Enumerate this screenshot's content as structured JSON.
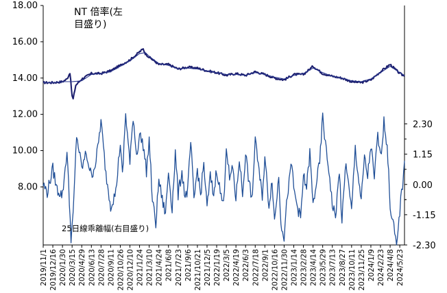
{
  "chart_data": {
    "type": "line",
    "title": "",
    "annotations": {
      "nt_ratio_line1": "NT 倍率(左",
      "nt_ratio_line2": "目盛り)",
      "deviation_label": "25日線乖離幅(右目盛り)"
    },
    "left_axis": {
      "ticks": [
        "18.00",
        "16.00",
        "14.00",
        "12.00",
        "10.00",
        "8.00"
      ],
      "tick_values": [
        18,
        16,
        14,
        12,
        10,
        8
      ],
      "range": [
        4.8,
        18
      ]
    },
    "right_axis": {
      "ticks": [
        "2.30",
        "1.15",
        "0.00",
        "-1.15",
        "-2.30"
      ],
      "tick_values": [
        2.3,
        1.15,
        0,
        -1.15,
        -2.3
      ],
      "range": [
        -2.3,
        6.8
      ]
    },
    "x_axis": {
      "start": "2019-11-01",
      "end": "2024-06-14",
      "tick_labels": [
        "2019/11/1",
        "2019/12/16",
        "2020/1/30",
        "2020/3/15",
        "2020/4/29",
        "2020/6/13",
        "2020/7/28",
        "2020/9/11",
        "2020/10/26",
        "2020/12/10",
        "2021/1/24",
        "2021/3/10",
        "2021/4/24",
        "2021/6/8",
        "2021/7/23",
        "2021/9/6",
        "2021/10/21",
        "2021/12/5",
        "2022/1/19",
        "2022/3/5",
        "2022/4/19",
        "2022/6/3",
        "2022/7/18",
        "2022/9/1",
        "2022/10/16",
        "2022/11/30",
        "2023/1/14",
        "2023/2/28",
        "2023/4/14",
        "2023/5/29",
        "2023/7/13",
        "2023/8/27",
        "2023/10/11",
        "2023/11/25",
        "2024/1/9",
        "2024/2/23",
        "2024/4/8",
        "2024/5/23"
      ]
    },
    "series": [
      {
        "axis": "left",
        "color": "#1c1f6e",
        "style": "daily",
        "dates": [
          "2019-11-01",
          "2019-12-16",
          "2020-01-30",
          "2020-02-20",
          "2020-03-05",
          "2020-03-15",
          "2020-03-20",
          "2020-04-01",
          "2020-04-29",
          "2020-06-13",
          "2020-07-28",
          "2020-09-11",
          "2020-10-26",
          "2020-12-10",
          "2021-01-10",
          "2021-01-24",
          "2021-02-10",
          "2021-02-20",
          "2021-03-10",
          "2021-04-24",
          "2021-06-08",
          "2021-07-23",
          "2021-09-06",
          "2021-10-21",
          "2021-12-05",
          "2022-01-19",
          "2022-03-05",
          "2022-04-19",
          "2022-06-03",
          "2022-07-18",
          "2022-09-01",
          "2022-10-16",
          "2022-11-30",
          "2023-01-14",
          "2023-02-28",
          "2023-04-14",
          "2023-05-29",
          "2023-07-13",
          "2023-08-27",
          "2023-10-11",
          "2023-11-25",
          "2024-01-09",
          "2024-02-23",
          "2024-04-08",
          "2024-05-23",
          "2024-06-14"
        ],
        "values": [
          13.75,
          13.75,
          13.8,
          13.95,
          14.3,
          13.0,
          12.85,
          13.6,
          13.95,
          14.25,
          14.25,
          14.4,
          14.7,
          15.0,
          15.3,
          15.45,
          15.6,
          15.35,
          15.15,
          14.75,
          14.75,
          14.5,
          14.6,
          14.55,
          14.4,
          14.3,
          14.15,
          14.25,
          14.15,
          14.35,
          14.2,
          14.0,
          13.9,
          14.2,
          14.2,
          14.65,
          14.25,
          14.1,
          14.0,
          13.8,
          13.75,
          13.9,
          14.35,
          14.75,
          14.25,
          14.1
        ]
      },
      {
        "axis": "left",
        "color": "#27348b",
        "style": "smooth",
        "dates": [
          "2019-11-01",
          "2019-12-16",
          "2020-01-30",
          "2020-03-15",
          "2020-04-29",
          "2020-06-13",
          "2020-07-28",
          "2020-09-11",
          "2020-10-26",
          "2020-12-10",
          "2021-01-24",
          "2021-02-20",
          "2021-03-10",
          "2021-04-24",
          "2021-06-08",
          "2021-07-23",
          "2021-09-06",
          "2021-10-21",
          "2021-12-05",
          "2022-01-19",
          "2022-03-05",
          "2022-04-19",
          "2022-06-03",
          "2022-07-18",
          "2022-09-01",
          "2022-10-16",
          "2022-11-30",
          "2023-01-14",
          "2023-02-28",
          "2023-04-14",
          "2023-05-29",
          "2023-07-13",
          "2023-08-27",
          "2023-10-11",
          "2023-11-25",
          "2024-01-09",
          "2024-02-23",
          "2024-04-08",
          "2024-05-23",
          "2024-06-14"
        ],
        "values": [
          13.75,
          13.75,
          13.8,
          13.8,
          13.85,
          14.2,
          14.25,
          14.35,
          14.65,
          14.95,
          15.35,
          15.4,
          15.2,
          14.8,
          14.7,
          14.5,
          14.55,
          14.5,
          14.4,
          14.3,
          14.2,
          14.2,
          14.15,
          14.3,
          14.2,
          14.05,
          13.95,
          14.15,
          14.25,
          14.55,
          14.3,
          14.1,
          14.0,
          13.85,
          13.8,
          13.95,
          14.3,
          14.65,
          14.3,
          14.15
        ]
      },
      {
        "axis": "right",
        "color": "#1f4e96",
        "dates": [
          "2019-11-01",
          "2019-11-20",
          "2019-12-16",
          "2020-01-05",
          "2020-01-30",
          "2020-02-20",
          "2020-03-10",
          "2020-03-20",
          "2020-04-05",
          "2020-04-29",
          "2020-05-20",
          "2020-06-13",
          "2020-07-05",
          "2020-07-28",
          "2020-08-20",
          "2020-09-11",
          "2020-10-05",
          "2020-10-26",
          "2020-11-05",
          "2020-11-20",
          "2020-12-10",
          "2020-12-25",
          "2021-01-10",
          "2021-01-24",
          "2021-02-10",
          "2021-02-25",
          "2021-03-10",
          "2021-03-25",
          "2021-04-10",
          "2021-04-24",
          "2021-05-10",
          "2021-05-25",
          "2021-06-08",
          "2021-06-25",
          "2021-07-10",
          "2021-07-23",
          "2021-08-10",
          "2021-08-25",
          "2021-09-06",
          "2021-09-20",
          "2021-10-05",
          "2021-10-21",
          "2021-11-05",
          "2021-11-20",
          "2021-12-05",
          "2021-12-20",
          "2022-01-05",
          "2022-01-19",
          "2022-02-05",
          "2022-02-20",
          "2022-03-05",
          "2022-03-20",
          "2022-04-05",
          "2022-04-19",
          "2022-05-05",
          "2022-05-20",
          "2022-06-03",
          "2022-06-20",
          "2022-07-05",
          "2022-07-18",
          "2022-08-05",
          "2022-08-20",
          "2022-09-01",
          "2022-09-20",
          "2022-10-05",
          "2022-10-16",
          "2022-11-05",
          "2022-11-15",
          "2022-11-30",
          "2022-12-15",
          "2023-01-05",
          "2023-01-14",
          "2023-02-05",
          "2023-02-15",
          "2023-02-28",
          "2023-03-15",
          "2023-03-30",
          "2023-04-14",
          "2023-04-28",
          "2023-05-15",
          "2023-05-29",
          "2023-06-15",
          "2023-07-01",
          "2023-07-13",
          "2023-07-28",
          "2023-08-15",
          "2023-08-27",
          "2023-09-15",
          "2023-09-30",
          "2023-10-11",
          "2023-10-28",
          "2023-11-10",
          "2023-11-25",
          "2023-12-10",
          "2023-12-25",
          "2024-01-09",
          "2024-01-25",
          "2024-02-10",
          "2024-02-23",
          "2024-03-10",
          "2024-03-25",
          "2024-04-08",
          "2024-04-25",
          "2024-05-08",
          "2024-05-23",
          "2024-06-05",
          "2024-06-14"
        ],
        "values": [
          0.0,
          -0.3,
          0.6,
          -0.2,
          -0.4,
          1.3,
          -2.0,
          -1.2,
          1.9,
          0.6,
          1.2,
          0.3,
          0.9,
          2.4,
          0.4,
          -0.8,
          -0.3,
          1.6,
          0.3,
          2.7,
          0.8,
          2.6,
          1.1,
          1.9,
          1.5,
          0.5,
          1.7,
          -0.6,
          -1.5,
          0.2,
          -0.6,
          -1.1,
          0.5,
          -0.9,
          1.2,
          -0.4,
          0.5,
          -0.5,
          -0.2,
          1.6,
          -0.6,
          0.6,
          -0.4,
          0.8,
          -0.9,
          0.3,
          -0.4,
          0.6,
          -0.3,
          -0.8,
          1.5,
          0.2,
          0.6,
          -0.6,
          1.0,
          -0.4,
          1.2,
          0.0,
          -0.6,
          1.9,
          0.4,
          -0.4,
          1.0,
          -0.8,
          0.2,
          -1.4,
          0.3,
          -1.4,
          -2.0,
          -0.4,
          0.8,
          -0.2,
          -1.0,
          -1.3,
          0.3,
          -0.1,
          1.2,
          -0.8,
          0.0,
          0.8,
          2.6,
          1.2,
          0.3,
          -0.8,
          -1.2,
          0.5,
          -1.4,
          0.9,
          -0.3,
          -1.0,
          1.4,
          0.4,
          -0.6,
          1.0,
          0.3,
          1.5,
          0.2,
          1.9,
          1.0,
          2.4,
          1.5,
          -0.8,
          -1.6,
          -2.5,
          -1.0,
          0.0,
          0.9
        ]
      }
    ],
    "grid": false,
    "legend": "none"
  }
}
